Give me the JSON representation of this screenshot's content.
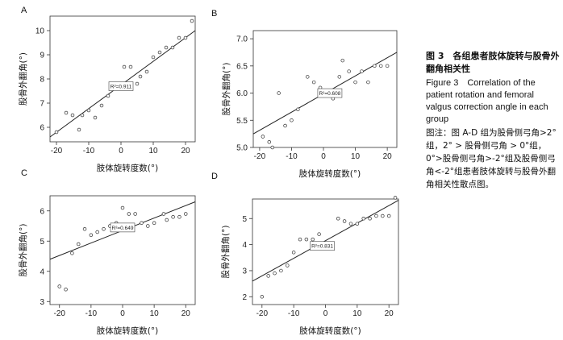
{
  "caption": {
    "title_zh": "图 3　各组患者肢体旋转与股骨外翻角相关性",
    "title_en": "Figure 3　Correlation of the patient rotation and femoral valgus correction angle in each group",
    "note": "图注：图 A-D 组为股骨侧弓角>2°组，2° > 股骨侧弓角 > 0°组，0°>股骨侧弓角>-2°组及股骨侧弓角<-2°组患者肢体旋转与股骨外翻角相关性散点图。"
  },
  "chart_data": [
    {
      "panel": "A",
      "type": "scatter",
      "xlabel": "肢体旋转度数(°)",
      "ylabel": "股骨外翻角(°)",
      "xlim": [
        -22,
        23
      ],
      "ylim": [
        5.4,
        10.6
      ],
      "xticks": [
        "-20",
        "-10",
        "0",
        "10",
        "20"
      ],
      "xtick_values": [
        -20,
        -10,
        0,
        10,
        20
      ],
      "yticks": [
        "6",
        "7",
        "8",
        "9",
        "10"
      ],
      "ytick_values": [
        6,
        7,
        8,
        9,
        10
      ],
      "points": [
        {
          "x": -20,
          "y": 5.8
        },
        {
          "x": -17,
          "y": 6.6
        },
        {
          "x": -15,
          "y": 6.5
        },
        {
          "x": -13,
          "y": 5.9
        },
        {
          "x": -12,
          "y": 6.5
        },
        {
          "x": -10,
          "y": 6.7
        },
        {
          "x": -8,
          "y": 6.4
        },
        {
          "x": -6,
          "y": 6.9
        },
        {
          "x": -4,
          "y": 7.3
        },
        {
          "x": -2,
          "y": 7.6
        },
        {
          "x": 1,
          "y": 8.5
        },
        {
          "x": 3,
          "y": 8.5
        },
        {
          "x": 5,
          "y": 7.8
        },
        {
          "x": 6,
          "y": 8.1
        },
        {
          "x": 8,
          "y": 8.3
        },
        {
          "x": 10,
          "y": 8.9
        },
        {
          "x": 12,
          "y": 9.1
        },
        {
          "x": 14,
          "y": 9.3
        },
        {
          "x": 16,
          "y": 9.3
        },
        {
          "x": 18,
          "y": 9.7
        },
        {
          "x": 20,
          "y": 9.7
        },
        {
          "x": 22,
          "y": 10.4
        }
      ],
      "fit": {
        "x": [
          -22,
          23
        ],
        "y": [
          5.6,
          10.0
        ]
      },
      "annotation": "R²=0.911",
      "annotation_at": {
        "x": 0,
        "y": 7.7
      }
    },
    {
      "panel": "B",
      "type": "scatter",
      "xlabel": "肢体旋转度数(°)",
      "ylabel": "股骨外翻角(°)",
      "xlim": [
        -22,
        23
      ],
      "ylim": [
        5.0,
        7.15
      ],
      "xticks": [
        "-20",
        "-10",
        "0",
        "10",
        "20"
      ],
      "xtick_values": [
        -20,
        -10,
        0,
        10,
        20
      ],
      "yticks": [
        "5.0",
        "5.5",
        "6.0",
        "6.5",
        "7.0"
      ],
      "ytick_values": [
        5.0,
        5.5,
        6.0,
        6.5,
        7.0
      ],
      "points": [
        {
          "x": -19,
          "y": 5.2
        },
        {
          "x": -17,
          "y": 5.1
        },
        {
          "x": -16,
          "y": 5.0
        },
        {
          "x": -14,
          "y": 6.0
        },
        {
          "x": -12,
          "y": 5.4
        },
        {
          "x": -10,
          "y": 5.5
        },
        {
          "x": -8,
          "y": 5.7
        },
        {
          "x": -5,
          "y": 6.3
        },
        {
          "x": -3,
          "y": 6.2
        },
        {
          "x": -1,
          "y": 6.1
        },
        {
          "x": 1,
          "y": 6.0
        },
        {
          "x": 3,
          "y": 5.9
        },
        {
          "x": 5,
          "y": 6.3
        },
        {
          "x": 6,
          "y": 6.6
        },
        {
          "x": 8,
          "y": 6.4
        },
        {
          "x": 10,
          "y": 6.2
        },
        {
          "x": 12,
          "y": 6.4
        },
        {
          "x": 14,
          "y": 6.2
        },
        {
          "x": 16,
          "y": 6.5
        },
        {
          "x": 18,
          "y": 6.5
        },
        {
          "x": 20,
          "y": 6.5
        }
      ],
      "fit": {
        "x": [
          -22,
          23
        ],
        "y": [
          5.25,
          6.75
        ]
      },
      "annotation": "R²=0.608",
      "annotation_at": {
        "x": 2,
        "y": 6.0
      }
    },
    {
      "panel": "C",
      "type": "scatter",
      "xlabel": "肢体旋转度数(°)",
      "ylabel": "股骨外翻角(°)",
      "xlim": [
        -23,
        23
      ],
      "ylim": [
        2.9,
        6.5
      ],
      "xticks": [
        "-20",
        "-10",
        "0",
        "10",
        "20"
      ],
      "xtick_values": [
        -20,
        -10,
        0,
        10,
        20
      ],
      "yticks": [
        "3",
        "4",
        "5",
        "6"
      ],
      "ytick_values": [
        3,
        4,
        5,
        6
      ],
      "points": [
        {
          "x": -20,
          "y": 3.5
        },
        {
          "x": -18,
          "y": 3.4
        },
        {
          "x": -16,
          "y": 4.6
        },
        {
          "x": -14,
          "y": 4.9
        },
        {
          "x": -12,
          "y": 5.4
        },
        {
          "x": -10,
          "y": 5.2
        },
        {
          "x": -8,
          "y": 5.3
        },
        {
          "x": -6,
          "y": 5.4
        },
        {
          "x": -4,
          "y": 5.5
        },
        {
          "x": -2,
          "y": 5.6
        },
        {
          "x": 0,
          "y": 6.1
        },
        {
          "x": 2,
          "y": 5.9
        },
        {
          "x": 4,
          "y": 5.9
        },
        {
          "x": 6,
          "y": 5.6
        },
        {
          "x": 8,
          "y": 5.5
        },
        {
          "x": 10,
          "y": 5.6
        },
        {
          "x": 13,
          "y": 5.9
        },
        {
          "x": 14,
          "y": 5.7
        },
        {
          "x": 16,
          "y": 5.8
        },
        {
          "x": 18,
          "y": 5.8
        },
        {
          "x": 20,
          "y": 5.9
        }
      ],
      "fit": {
        "x": [
          -23,
          23
        ],
        "y": [
          4.4,
          6.3
        ]
      },
      "annotation": "R²=0.649",
      "annotation_at": {
        "x": 0,
        "y": 5.45
      }
    },
    {
      "panel": "D",
      "type": "scatter",
      "xlabel": "肢体旋转度数(°)",
      "ylabel": "股骨外翻角(°)",
      "xlim": [
        -23,
        23
      ],
      "ylim": [
        1.7,
        5.75
      ],
      "xticks": [
        "-20",
        "-10",
        "0",
        "10",
        "20"
      ],
      "xtick_values": [
        -20,
        -10,
        0,
        10,
        20
      ],
      "yticks": [
        "2",
        "3",
        "4",
        "5"
      ],
      "ytick_values": [
        2,
        3,
        4,
        5
      ],
      "points": [
        {
          "x": -20,
          "y": 2.0
        },
        {
          "x": -18,
          "y": 2.8
        },
        {
          "x": -16,
          "y": 2.9
        },
        {
          "x": -14,
          "y": 3.0
        },
        {
          "x": -12,
          "y": 3.2
        },
        {
          "x": -10,
          "y": 3.7
        },
        {
          "x": -8,
          "y": 4.2
        },
        {
          "x": -6,
          "y": 4.2
        },
        {
          "x": -4,
          "y": 4.2
        },
        {
          "x": -2,
          "y": 4.4
        },
        {
          "x": 4,
          "y": 5.0
        },
        {
          "x": 6,
          "y": 4.9
        },
        {
          "x": 8,
          "y": 4.8
        },
        {
          "x": 10,
          "y": 4.8
        },
        {
          "x": 12,
          "y": 5.0
        },
        {
          "x": 14,
          "y": 5.0
        },
        {
          "x": 16,
          "y": 5.1
        },
        {
          "x": 18,
          "y": 5.1
        },
        {
          "x": 20,
          "y": 5.1
        },
        {
          "x": 22,
          "y": 5.8
        }
      ],
      "fit": {
        "x": [
          -23,
          23
        ],
        "y": [
          2.6,
          5.7
        ]
      },
      "annotation": "R²=0.831",
      "annotation_at": {
        "x": -1,
        "y": 3.95
      }
    }
  ]
}
